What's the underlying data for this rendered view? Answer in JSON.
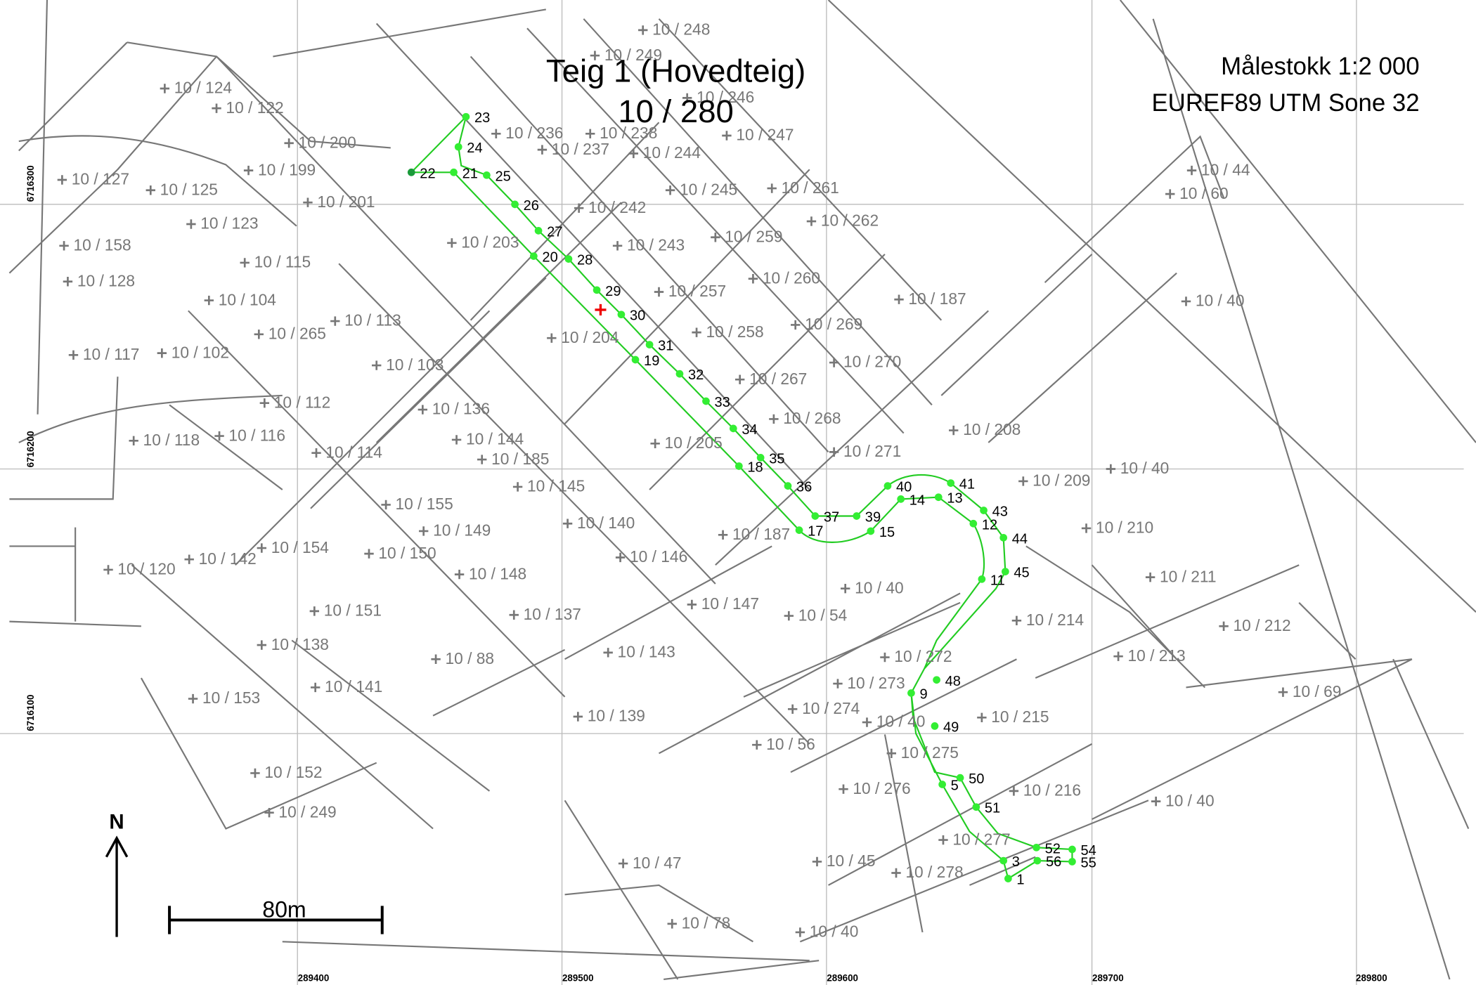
{
  "header": {
    "title": "Teig 1 (Hovedteig)",
    "parcel": "10 / 280"
  },
  "info": {
    "scale": "Målestokk 1:2 000",
    "crs": "EUREF89 UTM Sone 32"
  },
  "grid": {
    "eastings": [
      "289400",
      "289500",
      "289600",
      "289700",
      "289800"
    ],
    "northings": [
      "6716300",
      "6716200",
      "6716100"
    ]
  },
  "north": "N",
  "scale_bar": "80m",
  "parcels": [
    "10 / 248",
    "10 / 249",
    "10 / 124",
    "10 / 122",
    "10 / 246",
    "10 / 200",
    "10 / 236",
    "10 / 238",
    "10 / 237",
    "10 / 244",
    "10 / 247",
    "10 / 127",
    "10 / 125",
    "10 / 199",
    "10 / 201",
    "10 / 245",
    "10 / 261",
    "10 / 44",
    "10 / 60",
    "10 / 123",
    "10 / 242",
    "10 / 262",
    "10 / 158",
    "10 / 115",
    "10 / 203",
    "10 / 243",
    "10 / 259",
    "10 / 128",
    "10 / 104",
    "10 / 260",
    "10 / 257",
    "10 / 187",
    "10 / 40",
    "10 / 113",
    "10 / 265",
    "10 / 204",
    "10 / 258",
    "10 / 269",
    "10 / 117",
    "10 / 102",
    "10 / 103",
    "10 / 270",
    "10 / 267",
    "10 / 112",
    "10 / 136",
    "10 / 268",
    "10 / 208",
    "10 / 118",
    "10 / 116",
    "10 / 144",
    "10 / 205",
    "10 / 114",
    "10 / 185",
    "10 / 271",
    "10 / 40",
    "10 / 209",
    "10 / 145",
    "10 / 155",
    "10 / 140",
    "10 / 149",
    "10 / 187",
    "10 / 210",
    "10 / 154",
    "10 / 150",
    "10 / 146",
    "10 / 120",
    "10 / 142",
    "10 / 148",
    "10 / 211",
    "10 / 40",
    "10 / 147",
    "10 / 151",
    "10 / 137",
    "10 / 54",
    "10 / 214",
    "10 / 212",
    "10 / 138",
    "10 / 143",
    "10 / 272",
    "10 / 213",
    "10 / 88",
    "10 / 273",
    "10 / 141",
    "10 / 69",
    "10 / 153",
    "10 / 274",
    "10 / 139",
    "10 / 40",
    "10 / 215",
    "10 / 56",
    "10 / 275",
    "10 / 152",
    "10 / 276",
    "10 / 216",
    "10 / 40",
    "10 / 249",
    "10 / 277",
    "10 / 47",
    "10 / 45",
    "10 / 278",
    "10 / 78",
    "10 / 40"
  ],
  "points": [
    "23",
    "24",
    "22",
    "21",
    "25",
    "26",
    "27",
    "20",
    "28",
    "29",
    "30",
    "31",
    "19",
    "32",
    "33",
    "34",
    "35",
    "18",
    "36",
    "40",
    "41",
    "14",
    "13",
    "37",
    "39",
    "43",
    "12",
    "17",
    "15",
    "44",
    "45",
    "11",
    "48",
    "9",
    "49",
    "50",
    "5",
    "51",
    "52",
    "54",
    "3",
    "56",
    "55",
    "1"
  ]
}
